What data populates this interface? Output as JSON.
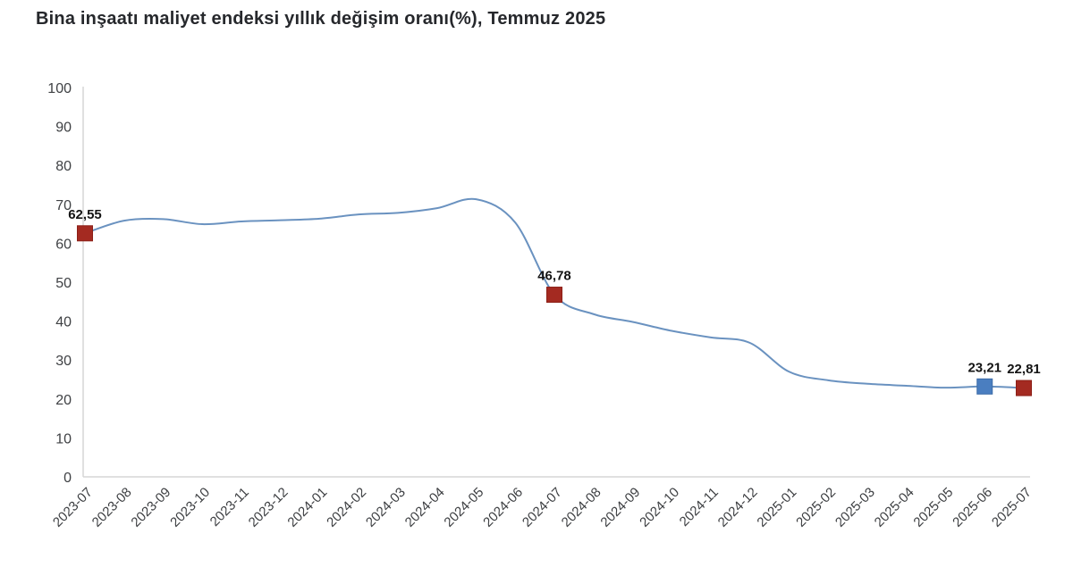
{
  "title": "Bina inşaatı maliyet endeksi yıllık değişim oranı(%), Temmuz 2025",
  "chart_data": {
    "type": "line",
    "title": "Bina inşaatı maliyet endeksi yıllık değişim oranı(%), Temmuz 2025",
    "xlabel": "",
    "ylabel": "",
    "ylim": [
      0,
      100
    ],
    "y_ticks": [
      0,
      10,
      20,
      30,
      40,
      50,
      60,
      70,
      80,
      90,
      100
    ],
    "grid": "off",
    "legend": "none",
    "line_color": "#6a92c0",
    "axis_color": "#d6d6d6",
    "categories": [
      "2023-07",
      "2023-08",
      "2023-09",
      "2023-10",
      "2023-11",
      "2023-12",
      "2024-01",
      "2024-02",
      "2024-03",
      "2024-04",
      "2024-05",
      "2024-06",
      "2024-07",
      "2024-08",
      "2024-09",
      "2024-10",
      "2024-11",
      "2024-12",
      "2025-01",
      "2025-02",
      "2025-03",
      "2025-04",
      "2025-05",
      "2025-06",
      "2025-07"
    ],
    "values": [
      62.55,
      65.8,
      66.2,
      64.9,
      65.6,
      65.9,
      66.3,
      67.4,
      67.8,
      69.0,
      71.3,
      65.3,
      46.78,
      41.8,
      39.8,
      37.5,
      35.8,
      34.4,
      27.0,
      24.8,
      23.9,
      23.4,
      22.9,
      23.21,
      22.81
    ],
    "highlighted_points": [
      {
        "x": "2023-07",
        "value": 62.55,
        "label": "62,55",
        "color": "#a42a21",
        "stroke": "#8c1f17"
      },
      {
        "x": "2024-07",
        "value": 46.78,
        "label": "46,78",
        "color": "#a42a21",
        "stroke": "#8c1f17"
      },
      {
        "x": "2025-06",
        "value": 23.21,
        "label": "23,21",
        "color": "#4a7ec0",
        "stroke": "#3c6ba7"
      },
      {
        "x": "2025-07",
        "value": 22.81,
        "label": "22,81",
        "color": "#a42a21",
        "stroke": "#8c1f17"
      }
    ]
  }
}
